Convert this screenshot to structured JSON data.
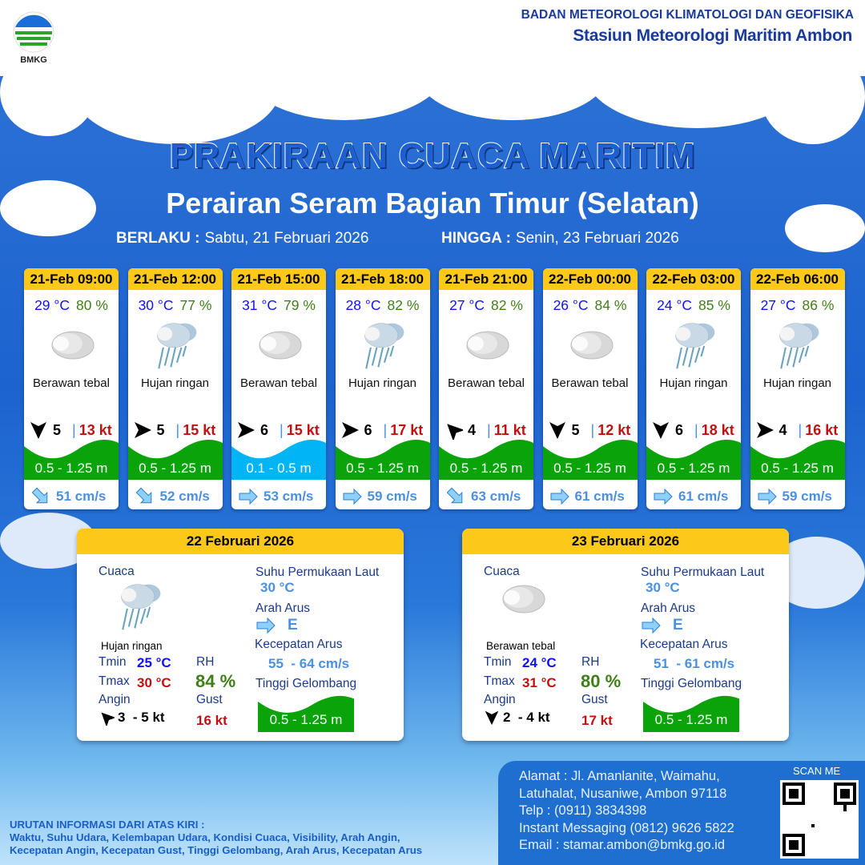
{
  "header": {
    "org_name": "BADAN METEOROLOGI KLIMATOLOGI DAN GEOFISIKA",
    "station": "Stasiun Meteorologi Maritim Ambon",
    "logo_text": "BMKG"
  },
  "title": "PRAKIRAAN CUACA MARITIM",
  "subtitle": "Perairan Seram Bagian Timur (Selatan)",
  "validity": {
    "from_label": "BERLAKU :",
    "from": "Sabtu, 21 Februari 2026",
    "to_label": "HINGGA :",
    "to": "Senin, 23 Februari 2026"
  },
  "colors": {
    "header_yellow": "#fcc81a",
    "wave_green": "#0aa30a",
    "wave_light_blue": "#00b4f5",
    "temp_blue": "#1010ff",
    "rh_green": "#3f7f17",
    "gust_red": "#c01010",
    "current_blue": "#4a90e2"
  },
  "forecasts": [
    {
      "time": "21-Feb 09:00",
      "temp": "29 °C",
      "rh": "80 %",
      "icon": "cloudy-icon",
      "weather": "Berawan tebal",
      "wind_arrow_points": "S",
      "wind": "5",
      "gust": "13 kt",
      "wave": "0.5 - 1.25 m",
      "wave_color": "green",
      "current_arrow_points": "SE",
      "current": "51 cm/s"
    },
    {
      "time": "21-Feb 12:00",
      "temp": "30 °C",
      "rh": "77 %",
      "icon": "rain-icon",
      "weather": "Hujan ringan",
      "wind_arrow_points": "E",
      "wind": "5",
      "gust": "15 kt",
      "wave": "0.5 - 1.25 m",
      "wave_color": "green",
      "current_arrow_points": "SE",
      "current": "52 cm/s"
    },
    {
      "time": "21-Feb 15:00",
      "temp": "31 °C",
      "rh": "79 %",
      "icon": "cloudy-icon",
      "weather": "Berawan tebal",
      "wind_arrow_points": "E",
      "wind": "6",
      "gust": "15 kt",
      "wave": "0.1 - 0.5 m",
      "wave_color": "light-blue",
      "current_arrow_points": "E",
      "current": "53 cm/s"
    },
    {
      "time": "21-Feb 18:00",
      "temp": "28 °C",
      "rh": "82 %",
      "icon": "rain-icon",
      "weather": "Hujan ringan",
      "wind_arrow_points": "E",
      "wind": "6",
      "gust": "17 kt",
      "wave": "0.5 - 1.25 m",
      "wave_color": "green",
      "current_arrow_points": "E",
      "current": "59 cm/s"
    },
    {
      "time": "21-Feb 21:00",
      "temp": "27 °C",
      "rh": "82 %",
      "icon": "cloudy-icon",
      "weather": "Berawan tebal",
      "wind_arrow_points": "NW",
      "wind": "4",
      "gust": "11 kt",
      "wave": "0.5 - 1.25 m",
      "wave_color": "green",
      "current_arrow_points": "SE",
      "current": "63 cm/s"
    },
    {
      "time": "22-Feb 00:00",
      "temp": "26 °C",
      "rh": "84 %",
      "icon": "cloudy-icon",
      "weather": "Berawan tebal",
      "wind_arrow_points": "S",
      "wind": "5",
      "gust": "12 kt",
      "wave": "0.5 - 1.25 m",
      "wave_color": "green",
      "current_arrow_points": "E",
      "current": "61 cm/s"
    },
    {
      "time": "22-Feb 03:00",
      "temp": "24 °C",
      "rh": "85 %",
      "icon": "rain-icon",
      "weather": "Hujan ringan",
      "wind_arrow_points": "S",
      "wind": "6",
      "gust": "18 kt",
      "wave": "0.5 - 1.25 m",
      "wave_color": "green",
      "current_arrow_points": "E",
      "current": "61 cm/s"
    },
    {
      "time": "22-Feb 06:00",
      "temp": "27 °C",
      "rh": "86 %",
      "icon": "rain-icon",
      "weather": "Hujan ringan",
      "wind_arrow_points": "E",
      "wind": "4",
      "gust": "16 kt",
      "wave": "0.5 - 1.25 m",
      "wave_color": "green",
      "current_arrow_points": "E",
      "current": "59 cm/s"
    }
  ],
  "daily": [
    {
      "date": "22 Februari 2026",
      "weather_label": "Cuaca",
      "icon": "rain-icon",
      "weather": "Hujan ringan",
      "tmin_label": "Tmin",
      "tmin": "25 °C",
      "tmax_label": "Tmax",
      "tmax": "30 °C",
      "rh_label": "RH",
      "rh": "84 %",
      "wind_label": "Angin",
      "wind_arrow_points": "NW",
      "wind": "3  - 5 kt",
      "gust_label": "Gust",
      "gust": "16 kt",
      "sst_label": "Suhu Permukaan Laut",
      "sst": "30 °C",
      "current_dir_label": "Arah Arus",
      "current_dir": "E",
      "current_speed_label": "Kecepatan Arus",
      "current_speed": "55  - 64 cm/s",
      "wave_label": "Tinggi Gelombang",
      "wave": "0.5 - 1.25 m"
    },
    {
      "date": "23 Februari 2026",
      "weather_label": "Cuaca",
      "icon": "cloudy-icon",
      "weather": "Berawan tebal",
      "tmin_label": "Tmin",
      "tmin": "24 °C",
      "tmax_label": "Tmax",
      "tmax": "31 °C",
      "rh_label": "RH",
      "rh": "80 %",
      "wind_label": "Angin",
      "wind_arrow_points": "S",
      "wind": "2  - 4 kt",
      "gust_label": "Gust",
      "gust": "17 kt",
      "sst_label": "Suhu Permukaan Laut",
      "sst": "30 °C",
      "current_dir_label": "Arah Arus",
      "current_dir": "E",
      "current_speed_label": "Kecepatan Arus",
      "current_speed": "51  - 61 cm/s",
      "wave_label": "Tinggi Gelombang",
      "wave": "0.5 - 1.25 m"
    }
  ],
  "legend": {
    "title": "URUTAN INFORMASI DARI ATAS KIRI :",
    "line1": "Waktu, Suhu Udara, Kelembapan Udara, Kondisi Cuaca, Visibility, Arah Angin,",
    "line2": "Kecepatan Angin, Kecepatan Gust, Tinggi Gelombang, Arah Arus, Kecepatan Arus"
  },
  "contact": {
    "address1": "Alamat : Jl. Amanlanite, Waimahu,",
    "address2": "Latuhalat, Nusaniwe, Ambon 97118",
    "phone": "Telp      : (0911) 3834398",
    "im": "Instant Messaging (0812) 9626 5822",
    "email": "Email     : stamar.ambon@bmkg.go.id",
    "scan_label": "SCAN ME"
  }
}
